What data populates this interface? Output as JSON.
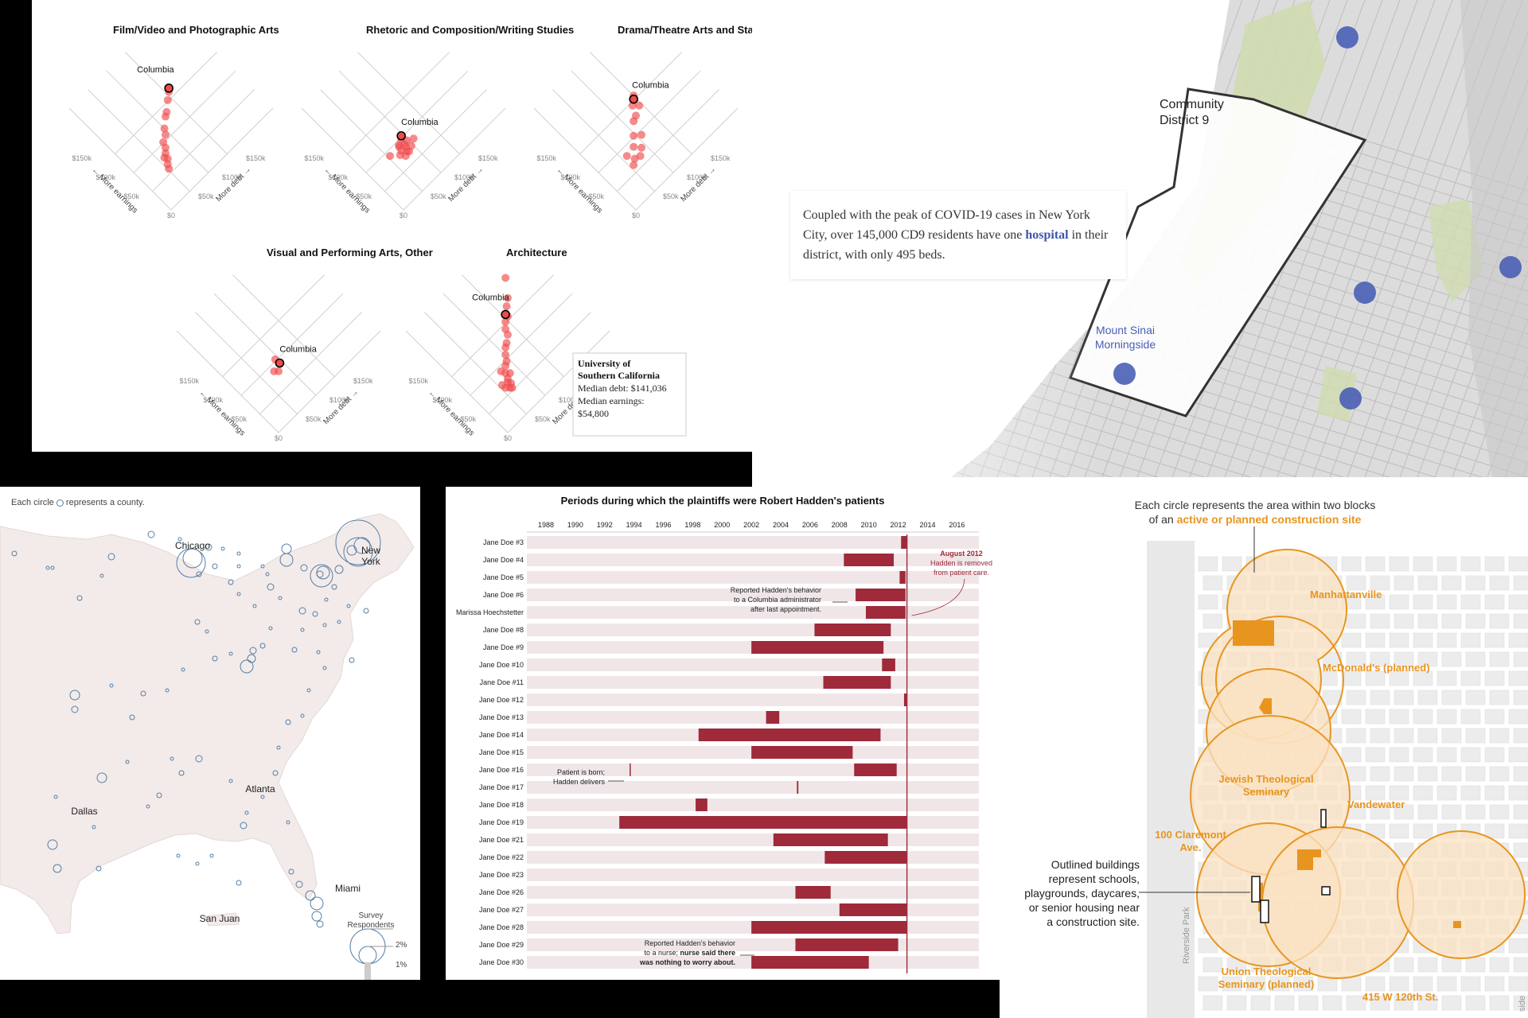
{
  "scatter": {
    "x_labels": [
      "$0",
      "$50k",
      "$100k",
      "$150k"
    ],
    "y_labels": [
      "$0",
      "$50k",
      "$100k",
      "$150k"
    ],
    "axis_earnings": "More earnings",
    "axis_debt": "More debt",
    "highlight_label": "Columbia",
    "panels": [
      {
        "title": "Film/Video and Photographic Arts"
      },
      {
        "title": "Rhetoric and Composition/Writing Studies"
      },
      {
        "title": "Drama/Theatre Arts and Stagecraft"
      },
      {
        "title": "Visual and Performing Arts, Other"
      },
      {
        "title": "Architecture"
      }
    ],
    "tooltip": {
      "name1": "University of",
      "name2": "Southern California",
      "debt": "Median debt: $141,036",
      "earn1": "Median earnings:",
      "earn2": "$54,800"
    }
  },
  "district_map": {
    "district_label1": "Community",
    "district_label2": "District 9",
    "hospital_label1": "Mount Sinai",
    "hospital_label2": "Morningside",
    "caption_pre": "Coupled with the peak of COVID-19 cases in New York City, over 145,000 CD9 residents have one",
    "caption_link": "hospital",
    "caption_post": "in their district, with only 495 beds.",
    "colors": {
      "hospital": "#4a5fb5",
      "district_outline": "#333333",
      "park": "#cfdcb0"
    }
  },
  "county_map": {
    "legend_pre": "Each circle",
    "legend_post": "represents a county.",
    "cities": [
      "Chicago",
      "New",
      "York",
      "Atlanta",
      "Dallas",
      "Miami",
      "San Juan"
    ],
    "size_legend_title1": "Survey",
    "size_legend_title2": "Respondents",
    "size_legend_values": [
      "2%",
      "1%"
    ]
  },
  "chart_data": {
    "type": "bar",
    "subtype": "range-timeline",
    "title": "Periods during which the plaintiffs were Robert Hadden's patients",
    "x_ticks": [
      "1988",
      "1990",
      "1992",
      "1994",
      "1996",
      "1998",
      "2000",
      "2002",
      "2004",
      "2006",
      "2008",
      "2010",
      "2012",
      "2014",
      "2016"
    ],
    "xlim": [
      1986.7,
      2017.5
    ],
    "background_end": 2017.5,
    "marker_year": 2012.6,
    "series": [
      {
        "label": "Jane Doe #3",
        "start": 2012.2,
        "end": 2012.6
      },
      {
        "label": "Jane Doe #4",
        "start": 2008.3,
        "end": 2011.7
      },
      {
        "label": "Jane Doe #5",
        "start": 2012.1,
        "end": 2012.5
      },
      {
        "label": "Jane Doe #6",
        "start": 2009.1,
        "end": 2012.5
      },
      {
        "label": "Marissa Hoechstetter",
        "start": 2009.8,
        "end": 2012.5
      },
      {
        "label": "Jane Doe #8",
        "start": 2006.3,
        "end": 2011.5
      },
      {
        "label": "Jane Doe #9",
        "start": 2002.0,
        "end": 2011.0
      },
      {
        "label": "Jane Doe #10",
        "start": 2010.9,
        "end": 2011.8
      },
      {
        "label": "Jane Doe #11",
        "start": 2006.9,
        "end": 2011.5
      },
      {
        "label": "Jane Doe #12",
        "start": 2012.4,
        "end": 2012.6
      },
      {
        "label": "Jane Doe #13",
        "start": 2003.0,
        "end": 2003.9
      },
      {
        "label": "Jane Doe #14",
        "start": 1998.4,
        "end": 2010.8
      },
      {
        "label": "Jane Doe #15",
        "start": 2002.0,
        "end": 2008.9
      },
      {
        "label": "Jane Doe #16",
        "start": 2009.0,
        "end": 2011.9
      },
      {
        "label": "Jane Doe #17",
        "start": 2005.1,
        "end": 2005.2
      },
      {
        "label": "Jane Doe #18",
        "start": 1998.2,
        "end": 1999.0
      },
      {
        "label": "Jane Doe #19",
        "start": 1993.0,
        "end": 2012.6
      },
      {
        "label": "Jane Doe #21",
        "start": 2003.5,
        "end": 2011.3
      },
      {
        "label": "Jane Doe #22",
        "start": 2007.0,
        "end": 2012.6
      },
      {
        "label": "Jane Doe #23",
        "start": null,
        "end": null
      },
      {
        "label": "Jane Doe #26",
        "start": 2005.0,
        "end": 2007.4
      },
      {
        "label": "Jane Doe #27",
        "start": 2008.0,
        "end": 2012.6
      },
      {
        "label": "Jane Doe #28",
        "start": 2002.0,
        "end": 2012.6
      },
      {
        "label": "Jane Doe #29",
        "start": 2005.0,
        "end": 2012.0
      },
      {
        "label": "Jane Doe #30",
        "start": 2002.0,
        "end": 2010.0
      }
    ],
    "marks": [
      {
        "label": "Jane Doe #16",
        "year": 1993.7
      }
    ],
    "annotations": {
      "aug1": "August 2012",
      "aug2": "Hadden is removed",
      "aug3": "from patient care.",
      "rep1a": "Reported Hadden's behavior",
      "rep1b": "to a Columbia administrator",
      "rep1c": "after last appointment.",
      "born1": "Patient is born;",
      "born2": "Hadden delivers",
      "nurse1": "Reported Hadden's behavior",
      "nurse2a": "to a nurse;",
      "nurse2b": "nurse said there",
      "nurse3": "was nothing to worry about."
    },
    "colors": {
      "bar": "#9e2a3a",
      "track": "#f0e6e8",
      "marker": "#9e2a3a"
    }
  },
  "construction_map": {
    "intro1": "Each circle represents the area within two blocks",
    "intro2_pre": "of an",
    "intro2_hl": "active or planned construction site",
    "places": {
      "manhattanville": "Manhattanville",
      "mcdonalds": "McDonald's (planned)",
      "jts1": "Jewish Theological",
      "jts2": "Seminary",
      "vandewater": "Vandewater",
      "claremont1": "100 Claremont",
      "claremont2": "Ave.",
      "uts1": "Union Theological",
      "uts2": "Seminary (planned)",
      "w120": "415 W 120th St.",
      "riverside1": "Riverside Park",
      "riverside2": "side Park"
    },
    "outlined1": "Outlined buildings",
    "outlined2": "represent schools,",
    "outlined3": "playgrounds, daycares,",
    "outlined4": "or senior housing near",
    "outlined5": "a construction site.",
    "colors": {
      "highlight": "#e8951f",
      "area": "#fbe2c2"
    }
  }
}
